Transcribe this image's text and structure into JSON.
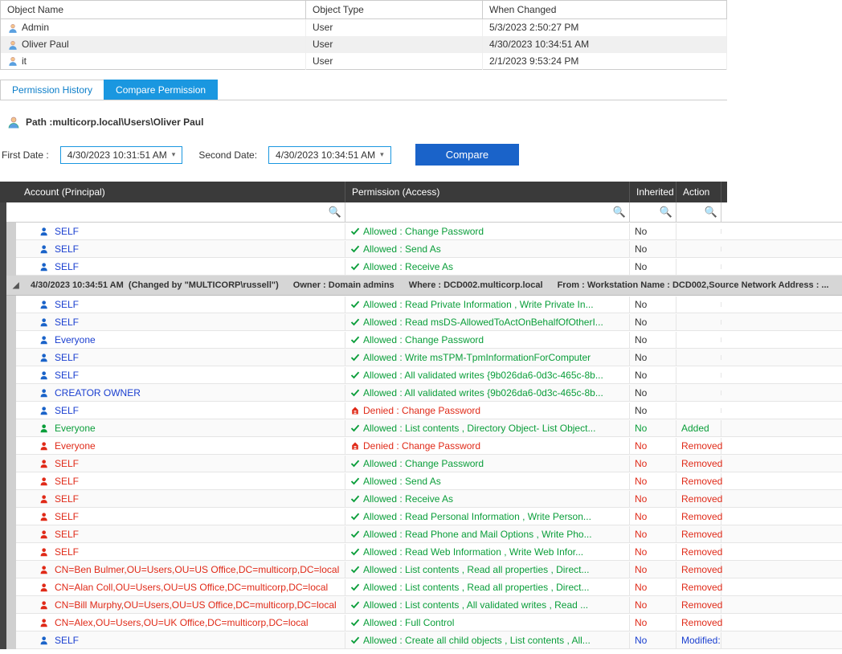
{
  "objects_table": {
    "headers": [
      "Object Name",
      "Object Type",
      "When Changed"
    ],
    "rows": [
      {
        "name": "Admin",
        "type": "User",
        "when": "5/3/2023 2:50:27 PM"
      },
      {
        "name": "Oliver Paul",
        "type": "User",
        "when": "4/30/2023 10:34:51 AM"
      },
      {
        "name": "it",
        "type": "User",
        "when": "2/1/2023 9:53:24 PM"
      }
    ]
  },
  "tabs": {
    "inactive": "Permission History",
    "active": "Compare Permission"
  },
  "path": {
    "label": "Path : ",
    "value": "multicorp.local\\Users\\Oliver Paul"
  },
  "dates": {
    "first_label": "First Date :",
    "first_value": "4/30/2023 10:31:51 AM",
    "second_label": "Second Date:",
    "second_value": "4/30/2023 10:34:51 AM",
    "compare_btn": "Compare"
  },
  "grid": {
    "headers": {
      "account": "Account (Principal)",
      "permission": "Permission (Access)",
      "inherited": "Inherited",
      "action": "Action"
    },
    "top_rows": [
      {
        "account": "SELF",
        "acct_color": "blue",
        "perm": "Allowed : Change Password",
        "perm_type": "allow",
        "inh": "No",
        "inh_color": "",
        "action": "",
        "action_color": ""
      },
      {
        "account": "SELF",
        "acct_color": "blue",
        "perm": "Allowed : Send As",
        "perm_type": "allow",
        "inh": "No",
        "inh_color": "",
        "action": "",
        "action_color": ""
      },
      {
        "account": "SELF",
        "acct_color": "blue",
        "perm": "Allowed : Receive As",
        "perm_type": "allow",
        "inh": "No",
        "inh_color": "",
        "action": "",
        "action_color": ""
      }
    ],
    "group": {
      "timestamp": "4/30/2023 10:34:51 AM",
      "changed_by": "(Changed by \"MULTICORP\\russell\")",
      "owner": "Owner : Domain admins",
      "where": "Where : DCD002.multicorp.local",
      "from": "From : Workstation Name : DCD002,Source Network Address : ..."
    },
    "bottom_rows": [
      {
        "account": "SELF",
        "acct_color": "blue",
        "perm": "Allowed : Read  Private Information ,    Write  Private In...",
        "perm_type": "allow",
        "inh": "No",
        "inh_color": "",
        "action": "",
        "action_color": ""
      },
      {
        "account": "SELF",
        "acct_color": "blue",
        "perm": "Allowed : Read  msDS-AllowedToActOnBehalfOfOtherI...",
        "perm_type": "allow",
        "inh": "No",
        "inh_color": "",
        "action": "",
        "action_color": ""
      },
      {
        "account": "Everyone",
        "acct_color": "blue",
        "perm": "Allowed : Change Password",
        "perm_type": "allow",
        "inh": "No",
        "inh_color": "",
        "action": "",
        "action_color": ""
      },
      {
        "account": "SELF",
        "acct_color": "blue",
        "perm": "Allowed : Write  msTPM-TpmInformationForComputer",
        "perm_type": "allow",
        "inh": "No",
        "inh_color": "",
        "action": "",
        "action_color": ""
      },
      {
        "account": "SELF",
        "acct_color": "blue",
        "perm": "Allowed : All validated writes {9b026da6-0d3c-465c-8b...",
        "perm_type": "allow",
        "inh": "No",
        "inh_color": "",
        "action": "",
        "action_color": ""
      },
      {
        "account": "CREATOR OWNER",
        "acct_color": "blue",
        "perm": "Allowed : All validated writes {9b026da6-0d3c-465c-8b...",
        "perm_type": "allow",
        "inh": "No",
        "inh_color": "",
        "action": "",
        "action_color": ""
      },
      {
        "account": "SELF",
        "acct_color": "blue",
        "perm": "Denied : Change Password",
        "perm_type": "deny",
        "inh": "No",
        "inh_color": "",
        "action": "",
        "action_color": ""
      },
      {
        "account": "Everyone",
        "acct_color": "green",
        "perm": "Allowed : List contents ,    Directory Object- List Object...",
        "perm_type": "allow",
        "inh": "No",
        "inh_color": "green",
        "action": "Added",
        "action_color": "green"
      },
      {
        "account": "Everyone",
        "acct_color": "red",
        "perm": "Denied : Change Password",
        "perm_type": "deny",
        "inh": "No",
        "inh_color": "red",
        "action": "Removed",
        "action_color": "red"
      },
      {
        "account": "SELF",
        "acct_color": "red",
        "perm": "Allowed : Change Password",
        "perm_type": "allow",
        "inh": "No",
        "inh_color": "red",
        "action": "Removed",
        "action_color": "red"
      },
      {
        "account": "SELF",
        "acct_color": "red",
        "perm": "Allowed : Send As",
        "perm_type": "allow",
        "inh": "No",
        "inh_color": "red",
        "action": "Removed",
        "action_color": "red"
      },
      {
        "account": "SELF",
        "acct_color": "red",
        "perm": "Allowed : Receive As",
        "perm_type": "allow",
        "inh": "No",
        "inh_color": "red",
        "action": "Removed",
        "action_color": "red"
      },
      {
        "account": "SELF",
        "acct_color": "red",
        "perm": "Allowed : Read  Personal Information ,    Write  Person...",
        "perm_type": "allow",
        "inh": "No",
        "inh_color": "red",
        "action": "Removed",
        "action_color": "red"
      },
      {
        "account": "SELF",
        "acct_color": "red",
        "perm": "Allowed : Read  Phone and Mail Options ,    Write  Pho...",
        "perm_type": "allow",
        "inh": "No",
        "inh_color": "red",
        "action": "Removed",
        "action_color": "red"
      },
      {
        "account": "SELF",
        "acct_color": "red",
        "perm": "Allowed : Read  Web Information ,    Write  Web Infor...",
        "perm_type": "allow",
        "inh": "No",
        "inh_color": "red",
        "action": "Removed",
        "action_color": "red"
      },
      {
        "account": "CN=Ben Bulmer,OU=Users,OU=US Office,DC=multicorp,DC=local",
        "acct_color": "red",
        "perm": "Allowed : List contents ,    Read all properties ,    Direct...",
        "perm_type": "allow",
        "inh": "No",
        "inh_color": "red",
        "action": "Removed",
        "action_color": "red"
      },
      {
        "account": "CN=Alan Coll,OU=Users,OU=US Office,DC=multicorp,DC=local",
        "acct_color": "red",
        "perm": "Allowed : List contents ,    Read all properties ,    Direct...",
        "perm_type": "allow",
        "inh": "No",
        "inh_color": "red",
        "action": "Removed",
        "action_color": "red"
      },
      {
        "account": "CN=Bill Murphy,OU=Users,OU=US Office,DC=multicorp,DC=local",
        "acct_color": "red",
        "perm": "Allowed : List contents ,    All validated writes ,    Read ...",
        "perm_type": "allow",
        "inh": "No",
        "inh_color": "red",
        "action": "Removed",
        "action_color": "red"
      },
      {
        "account": "CN=Alex,OU=Users,OU=UK Office,DC=multicorp,DC=local",
        "acct_color": "red",
        "perm": "Allowed : Full Control",
        "perm_type": "allow",
        "inh": "No",
        "inh_color": "red",
        "action": "Removed",
        "action_color": "red"
      },
      {
        "account": "SELF",
        "acct_color": "blue",
        "perm": "Allowed : Create all child objects ,    List contents ,    All...",
        "perm_type": "allow",
        "inh": "No",
        "inh_color": "blue",
        "action": "Modified:",
        "action_color": "blue"
      }
    ]
  },
  "colors": {
    "green": "#0a9e3a",
    "red": "#e02a18",
    "blue": "#1a3fd0",
    "tab_active": "#1a97e0",
    "compare_btn": "#1a63c9",
    "header_dark": "#3a3a3a"
  }
}
